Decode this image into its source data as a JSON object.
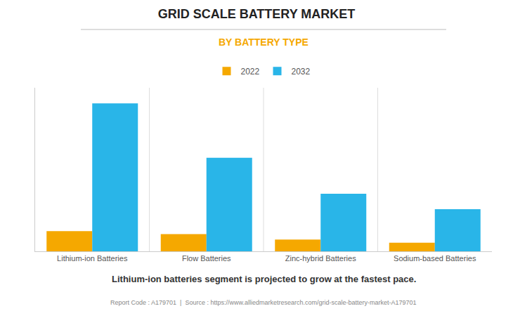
{
  "chart_data": {
    "type": "bar",
    "title": "GRID SCALE BATTERY MARKET",
    "subtitle": "BY BATTERY TYPE",
    "categories": [
      "Lithium-ion Batteries",
      "Flow Batteries",
      "Zinc-hybrid Batteries",
      "Sodium-based Batteries"
    ],
    "series": [
      {
        "name": "2022",
        "color": "#F5A800",
        "values": [
          0.13,
          0.11,
          0.075,
          0.055
        ]
      },
      {
        "name": "2032",
        "color": "#29B5E8",
        "values": [
          0.95,
          0.6,
          0.37,
          0.27
        ]
      }
    ],
    "ylim": [
      0,
      1.05
    ],
    "yticks": [],
    "grid": false,
    "legend": "top",
    "tick_labels": "x",
    "footer": "Lithium-ion batteries segment is projected to grow at the fastest pace.",
    "caption": "Report Code : A179701  |  Source : https://www.alliedmarketresearch.com/grid-scale-battery-market-A179701"
  }
}
